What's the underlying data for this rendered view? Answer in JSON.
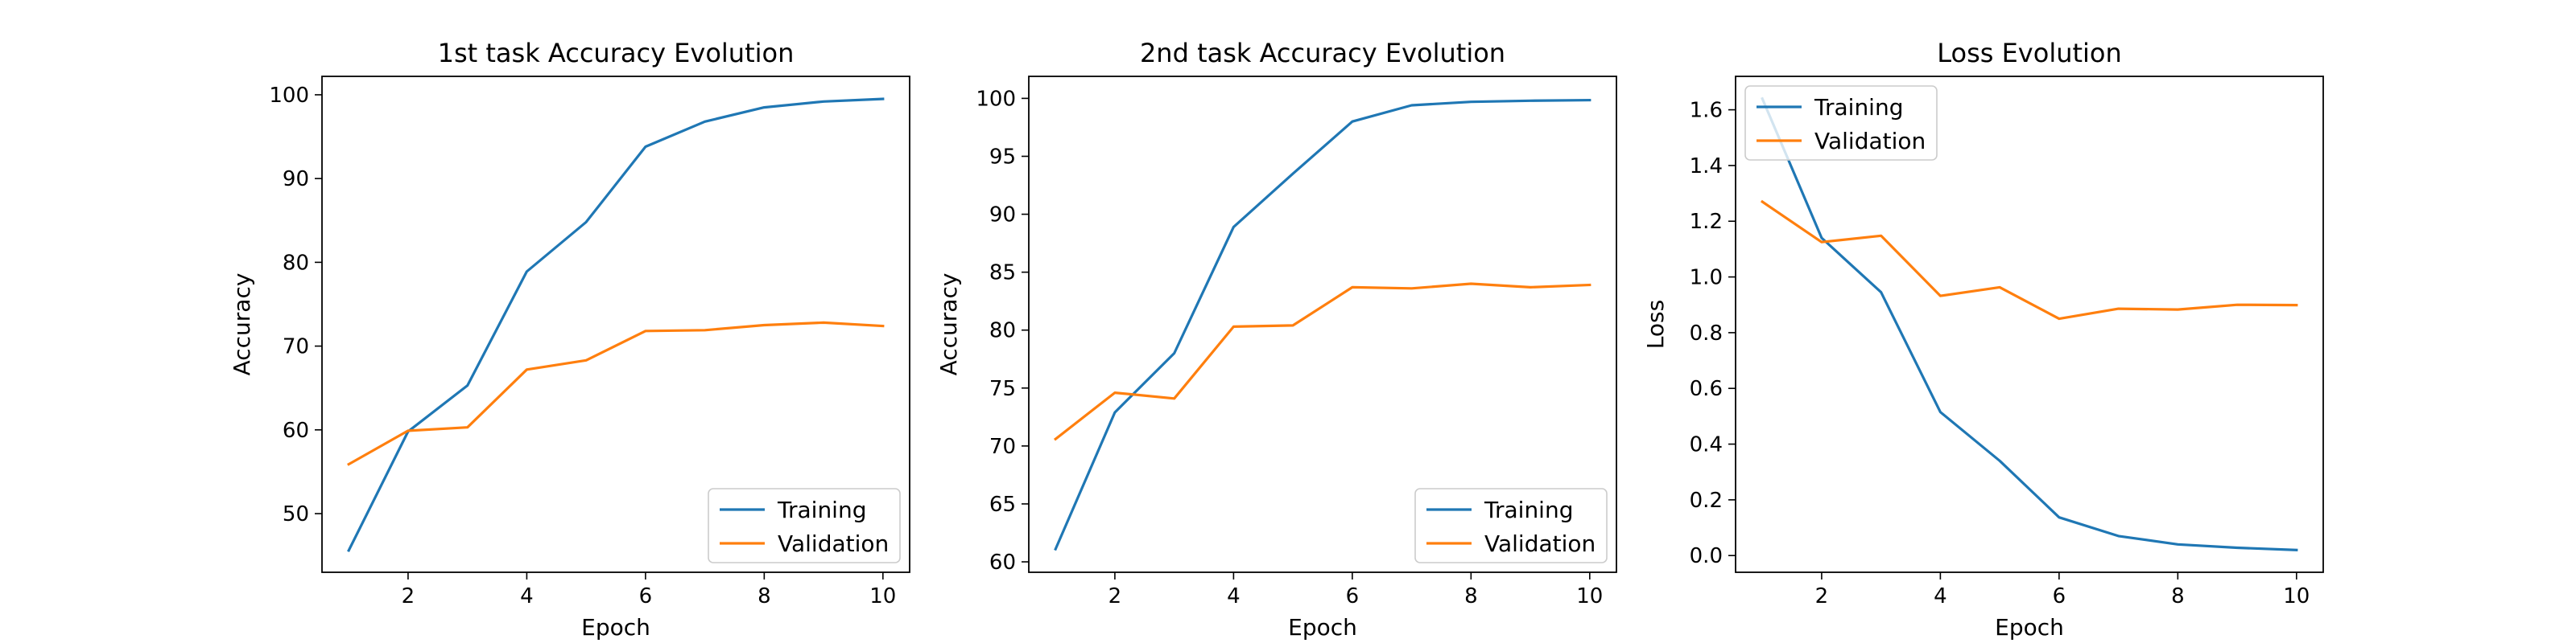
{
  "colors": {
    "training": "#1f77b4",
    "validation": "#ff7f0e"
  },
  "chart_data": [
    {
      "type": "line",
      "title": "1st task Accuracy Evolution",
      "xlabel": "Epoch",
      "ylabel": "Accuracy",
      "xlim": [
        0.55,
        10.45
      ],
      "ylim": [
        43.0,
        102.2
      ],
      "xticks": [
        2,
        4,
        6,
        8,
        10
      ],
      "yticks": [
        50,
        60,
        70,
        80,
        90,
        100
      ],
      "legend": "lower-right",
      "grid": false,
      "x": [
        1,
        2,
        3,
        4,
        5,
        6,
        7,
        8,
        9,
        10
      ],
      "series": [
        {
          "name": "Training",
          "color": "#1f77b4",
          "values": [
            45.6,
            59.8,
            65.3,
            78.9,
            84.8,
            93.8,
            96.8,
            98.5,
            99.2,
            99.5
          ]
        },
        {
          "name": "Validation",
          "color": "#ff7f0e",
          "values": [
            55.9,
            59.9,
            60.3,
            67.2,
            68.3,
            71.8,
            71.9,
            72.5,
            72.8,
            72.4
          ]
        }
      ]
    },
    {
      "type": "line",
      "title": "2nd task Accuracy Evolution",
      "xlabel": "Epoch",
      "ylabel": "Accuracy",
      "xlim": [
        0.55,
        10.45
      ],
      "ylim": [
        59.1,
        101.9
      ],
      "xticks": [
        2,
        4,
        6,
        8,
        10
      ],
      "yticks": [
        60,
        65,
        70,
        75,
        80,
        85,
        90,
        95,
        100
      ],
      "legend": "lower-right",
      "grid": false,
      "x": [
        1,
        2,
        3,
        4,
        5,
        6,
        7,
        8,
        9,
        10
      ],
      "series": [
        {
          "name": "Training",
          "color": "#1f77b4",
          "values": [
            61.1,
            72.9,
            78.0,
            88.9,
            93.5,
            98.0,
            99.4,
            99.7,
            99.8,
            99.85
          ]
        },
        {
          "name": "Validation",
          "color": "#ff7f0e",
          "values": [
            70.6,
            74.6,
            74.1,
            80.3,
            80.4,
            83.7,
            83.6,
            84.0,
            83.7,
            83.9
          ]
        }
      ]
    },
    {
      "type": "line",
      "title": "Loss Evolution",
      "xlabel": "Epoch",
      "ylabel": "Loss",
      "xlim": [
        0.55,
        10.45
      ],
      "ylim": [
        -0.06,
        1.72
      ],
      "xticks": [
        2,
        4,
        6,
        8,
        10
      ],
      "yticks": [
        0.0,
        0.2,
        0.4,
        0.6,
        0.8,
        1.0,
        1.2,
        1.4,
        1.6
      ],
      "ytick_labels": [
        "0.0",
        "0.2",
        "0.4",
        "0.6",
        "0.8",
        "1.0",
        "1.2",
        "1.4",
        "1.6"
      ],
      "legend": "upper-left",
      "grid": false,
      "x": [
        1,
        2,
        3,
        4,
        5,
        6,
        7,
        8,
        9,
        10
      ],
      "series": [
        {
          "name": "Training",
          "color": "#1f77b4",
          "values": [
            1.64,
            1.14,
            0.945,
            0.515,
            0.34,
            0.137,
            0.07,
            0.04,
            0.028,
            0.02
          ]
        },
        {
          "name": "Validation",
          "color": "#ff7f0e",
          "values": [
            1.27,
            1.125,
            1.148,
            0.932,
            0.963,
            0.85,
            0.886,
            0.883,
            0.9,
            0.899
          ]
        }
      ]
    }
  ]
}
